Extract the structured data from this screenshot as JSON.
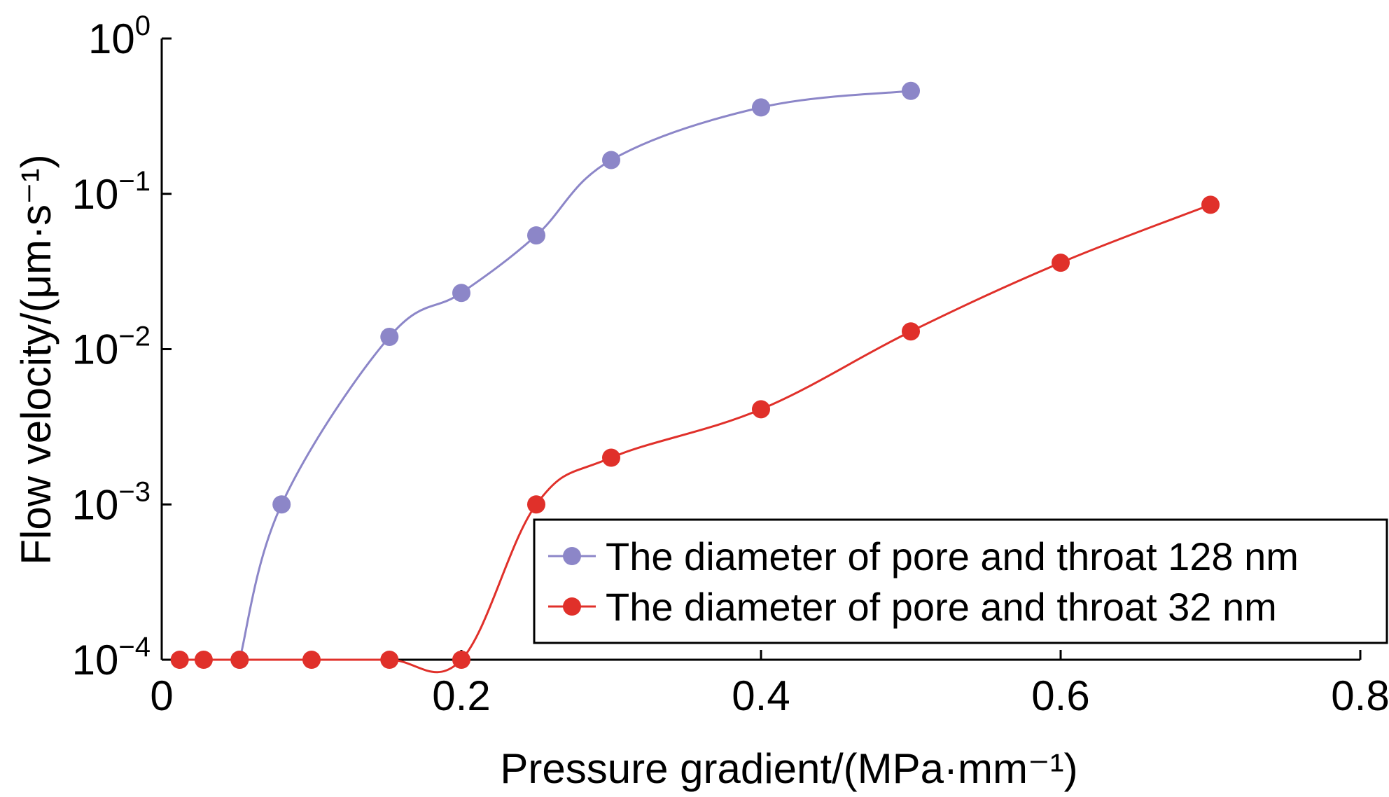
{
  "chart_data": {
    "type": "line",
    "xlabel": "Pressure gradient/(MPa·mm⁻¹)",
    "ylabel": "Flow velocity/(μm·s⁻¹)",
    "xlim": [
      0,
      0.8
    ],
    "ylim": [
      0.0001,
      1
    ],
    "yscale": "log",
    "x_ticks": [
      {
        "value": 0,
        "label": "0"
      },
      {
        "value": 0.2,
        "label": "0.2"
      },
      {
        "value": 0.4,
        "label": "0.4"
      },
      {
        "value": 0.6,
        "label": "0.6"
      },
      {
        "value": 0.8,
        "label": "0.8"
      }
    ],
    "y_ticks": [
      {
        "value": 1,
        "base": "10",
        "exp": "0"
      },
      {
        "value": 0.1,
        "base": "10",
        "exp": "−1"
      },
      {
        "value": 0.01,
        "base": "10",
        "exp": "−2"
      },
      {
        "value": 0.001,
        "base": "10",
        "exp": "−3"
      },
      {
        "value": 0.0001,
        "base": "10",
        "exp": "−4"
      }
    ],
    "legend_position": "bottom-right",
    "grid": false,
    "series": [
      {
        "name": "The diameter of pore and throat 128 nm",
        "color": "#8c86c8",
        "x": [
          0.052,
          0.08,
          0.152,
          0.2,
          0.25,
          0.3,
          0.4,
          0.5
        ],
        "y": [
          0.0001,
          0.001,
          0.012,
          0.023,
          0.054,
          0.165,
          0.36,
          0.46
        ]
      },
      {
        "name": "The diameter of pore and throat 32 nm",
        "color": "#e0302a",
        "x": [
          0.012,
          0.028,
          0.052,
          0.1,
          0.152,
          0.2,
          0.25,
          0.3,
          0.4,
          0.5,
          0.6,
          0.7
        ],
        "y": [
          0.0001,
          0.0001,
          0.0001,
          0.0001,
          0.0001,
          0.0001,
          0.001,
          0.002,
          0.0041,
          0.013,
          0.036,
          0.085
        ]
      }
    ]
  }
}
